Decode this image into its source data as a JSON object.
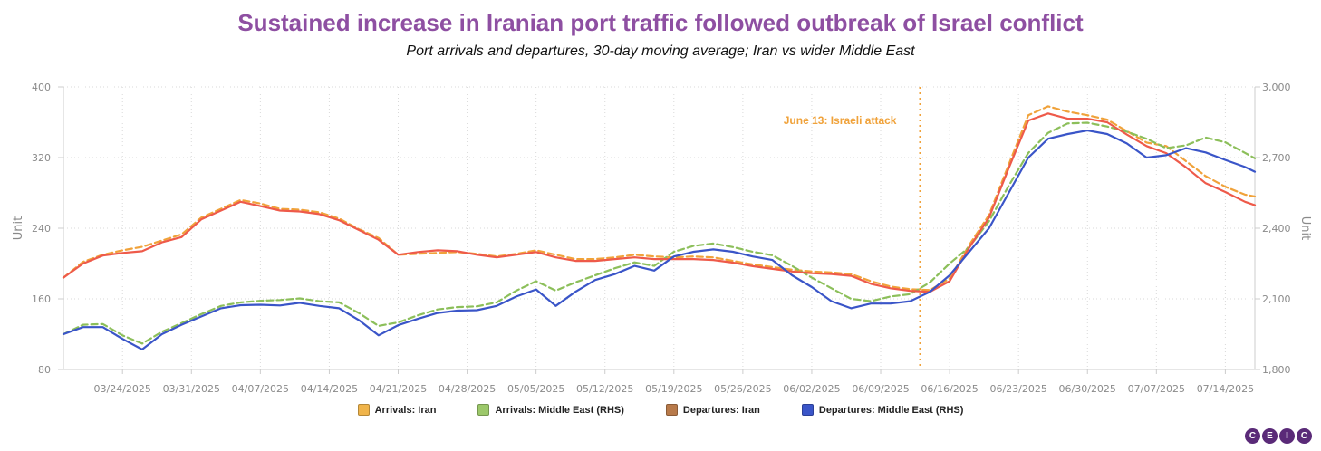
{
  "chart_data": {
    "type": "line",
    "title": "Sustained increase in Iranian port traffic followed outbreak of Israel conflict",
    "subtitle": "Port arrivals and departures, 30-day moving average; Iran vs wider Middle East",
    "y_left_label": "Unit",
    "y_right_label": "Unit",
    "y_left_range": [
      80,
      400
    ],
    "y_right_range": [
      1800,
      3000
    ],
    "y_left_ticks": [
      "80",
      "160",
      "240",
      "320",
      "400"
    ],
    "y_right_ticks": [
      "1,800",
      "2,100",
      "2,400",
      "2,700",
      "3,000"
    ],
    "x_ticks": [
      "03/24/2025",
      "03/31/2025",
      "04/07/2025",
      "04/14/2025",
      "04/21/2025",
      "04/28/2025",
      "05/05/2025",
      "05/12/2025",
      "05/19/2025",
      "05/26/2025",
      "06/02/2025",
      "06/09/2025",
      "06/16/2025",
      "06/23/2025",
      "06/30/2025",
      "07/07/2025",
      "07/14/2025"
    ],
    "x_start": "03/18/2025",
    "x_end": "07/17/2025",
    "grid": true,
    "legend_position": "bottom",
    "annotation": {
      "date": "06/13/2025",
      "label": "June 13: Israeli attack"
    },
    "series": [
      {
        "name": "Arrivals: Iran",
        "axis": "left",
        "color": "#f0a23a",
        "dashed": true,
        "points": [
          [
            "03/18/2025",
            184
          ],
          [
            "03/20/2025",
            202
          ],
          [
            "03/22/2025",
            210
          ],
          [
            "03/24/2025",
            215
          ],
          [
            "03/26/2025",
            219
          ],
          [
            "03/28/2025",
            226
          ],
          [
            "03/30/2025",
            233
          ],
          [
            "04/01/2025",
            252
          ],
          [
            "04/03/2025",
            262
          ],
          [
            "04/05/2025",
            272
          ],
          [
            "04/07/2025",
            268
          ],
          [
            "04/09/2025",
            262
          ],
          [
            "04/11/2025",
            261
          ],
          [
            "04/13/2025",
            258
          ],
          [
            "04/15/2025",
            251
          ],
          [
            "04/17/2025",
            239
          ],
          [
            "04/19/2025",
            229
          ],
          [
            "04/21/2025",
            210
          ],
          [
            "04/23/2025",
            211
          ],
          [
            "04/25/2025",
            212
          ],
          [
            "04/27/2025",
            213
          ],
          [
            "04/29/2025",
            211
          ],
          [
            "05/01/2025",
            208
          ],
          [
            "05/03/2025",
            211
          ],
          [
            "05/05/2025",
            215
          ],
          [
            "05/07/2025",
            210
          ],
          [
            "05/09/2025",
            205
          ],
          [
            "05/11/2025",
            205
          ],
          [
            "05/13/2025",
            207
          ],
          [
            "05/15/2025",
            210
          ],
          [
            "05/17/2025",
            208
          ],
          [
            "05/19/2025",
            207
          ],
          [
            "05/21/2025",
            208
          ],
          [
            "05/23/2025",
            207
          ],
          [
            "05/25/2025",
            203
          ],
          [
            "05/27/2025",
            199
          ],
          [
            "05/29/2025",
            196
          ],
          [
            "05/31/2025",
            193
          ],
          [
            "06/02/2025",
            191
          ],
          [
            "06/04/2025",
            190
          ],
          [
            "06/06/2025",
            188
          ],
          [
            "06/08/2025",
            180
          ],
          [
            "06/10/2025",
            174
          ],
          [
            "06/12/2025",
            171
          ],
          [
            "06/14/2025",
            170
          ],
          [
            "06/16/2025",
            183
          ],
          [
            "06/18/2025",
            221
          ],
          [
            "06/20/2025",
            255
          ],
          [
            "06/22/2025",
            312
          ],
          [
            "06/24/2025",
            368
          ],
          [
            "06/26/2025",
            378
          ],
          [
            "06/28/2025",
            372
          ],
          [
            "06/30/2025",
            368
          ],
          [
            "07/02/2025",
            363
          ],
          [
            "07/04/2025",
            350
          ],
          [
            "07/06/2025",
            337
          ],
          [
            "07/08/2025",
            333
          ],
          [
            "07/10/2025",
            316
          ],
          [
            "07/12/2025",
            299
          ],
          [
            "07/14/2025",
            287
          ],
          [
            "07/16/2025",
            278
          ],
          [
            "07/17/2025",
            276
          ]
        ]
      },
      {
        "name": "Arrivals: Middle East (RHS)",
        "axis": "right",
        "color": "#8cbf5a",
        "dashed": true,
        "points": [
          [
            "03/18/2025",
            1950
          ],
          [
            "03/20/2025",
            1990
          ],
          [
            "03/22/2025",
            1993
          ],
          [
            "03/24/2025",
            1945
          ],
          [
            "03/26/2025",
            1910
          ],
          [
            "03/28/2025",
            1960
          ],
          [
            "03/30/2025",
            1997
          ],
          [
            "04/01/2025",
            2035
          ],
          [
            "04/03/2025",
            2070
          ],
          [
            "04/05/2025",
            2085
          ],
          [
            "04/07/2025",
            2092
          ],
          [
            "04/09/2025",
            2095
          ],
          [
            "04/11/2025",
            2102
          ],
          [
            "04/13/2025",
            2090
          ],
          [
            "04/15/2025",
            2085
          ],
          [
            "04/17/2025",
            2040
          ],
          [
            "04/19/2025",
            1985
          ],
          [
            "04/21/2025",
            2000
          ],
          [
            "04/23/2025",
            2030
          ],
          [
            "04/25/2025",
            2055
          ],
          [
            "04/27/2025",
            2065
          ],
          [
            "04/29/2025",
            2068
          ],
          [
            "05/01/2025",
            2085
          ],
          [
            "05/03/2025",
            2135
          ],
          [
            "05/05/2025",
            2175
          ],
          [
            "05/07/2025",
            2135
          ],
          [
            "05/09/2025",
            2170
          ],
          [
            "05/11/2025",
            2200
          ],
          [
            "05/13/2025",
            2230
          ],
          [
            "05/15/2025",
            2255
          ],
          [
            "05/17/2025",
            2240
          ],
          [
            "05/19/2025",
            2300
          ],
          [
            "05/21/2025",
            2325
          ],
          [
            "05/23/2025",
            2335
          ],
          [
            "05/25/2025",
            2320
          ],
          [
            "05/27/2025",
            2300
          ],
          [
            "05/29/2025",
            2285
          ],
          [
            "05/31/2025",
            2240
          ],
          [
            "06/02/2025",
            2190
          ],
          [
            "06/04/2025",
            2145
          ],
          [
            "06/06/2025",
            2100
          ],
          [
            "06/08/2025",
            2090
          ],
          [
            "06/10/2025",
            2110
          ],
          [
            "06/12/2025",
            2120
          ],
          [
            "06/14/2025",
            2170
          ],
          [
            "06/16/2025",
            2250
          ],
          [
            "06/18/2025",
            2320
          ],
          [
            "06/20/2025",
            2430
          ],
          [
            "06/22/2025",
            2580
          ],
          [
            "06/24/2025",
            2720
          ],
          [
            "06/26/2025",
            2805
          ],
          [
            "06/28/2025",
            2845
          ],
          [
            "06/30/2025",
            2848
          ],
          [
            "07/02/2025",
            2832
          ],
          [
            "07/04/2025",
            2810
          ],
          [
            "07/06/2025",
            2780
          ],
          [
            "07/08/2025",
            2740
          ],
          [
            "07/10/2025",
            2752
          ],
          [
            "07/12/2025",
            2785
          ],
          [
            "07/14/2025",
            2765
          ],
          [
            "07/16/2025",
            2720
          ],
          [
            "07/17/2025",
            2697
          ]
        ]
      },
      {
        "name": "Departures: Iran",
        "axis": "left",
        "color": "#ee5a4a",
        "dashed": false,
        "points": [
          [
            "03/18/2025",
            184
          ],
          [
            "03/20/2025",
            200
          ],
          [
            "03/22/2025",
            209
          ],
          [
            "03/24/2025",
            212
          ],
          [
            "03/26/2025",
            214
          ],
          [
            "03/28/2025",
            224
          ],
          [
            "03/30/2025",
            230
          ],
          [
            "04/01/2025",
            250
          ],
          [
            "04/03/2025",
            260
          ],
          [
            "04/05/2025",
            270
          ],
          [
            "04/07/2025",
            265
          ],
          [
            "04/09/2025",
            260
          ],
          [
            "04/11/2025",
            259
          ],
          [
            "04/13/2025",
            256
          ],
          [
            "04/15/2025",
            249
          ],
          [
            "04/17/2025",
            238
          ],
          [
            "04/19/2025",
            227
          ],
          [
            "04/21/2025",
            210
          ],
          [
            "04/23/2025",
            213
          ],
          [
            "04/25/2025",
            215
          ],
          [
            "04/27/2025",
            214
          ],
          [
            "04/29/2025",
            210
          ],
          [
            "05/01/2025",
            207
          ],
          [
            "05/03/2025",
            210
          ],
          [
            "05/05/2025",
            213
          ],
          [
            "05/07/2025",
            207
          ],
          [
            "05/09/2025",
            203
          ],
          [
            "05/11/2025",
            203
          ],
          [
            "05/13/2025",
            205
          ],
          [
            "05/15/2025",
            207
          ],
          [
            "05/17/2025",
            205
          ],
          [
            "05/19/2025",
            205
          ],
          [
            "05/21/2025",
            205
          ],
          [
            "05/23/2025",
            204
          ],
          [
            "05/25/2025",
            201
          ],
          [
            "05/27/2025",
            197
          ],
          [
            "05/29/2025",
            194
          ],
          [
            "05/31/2025",
            191
          ],
          [
            "06/02/2025",
            189
          ],
          [
            "06/04/2025",
            188
          ],
          [
            "06/06/2025",
            186
          ],
          [
            "06/08/2025",
            177
          ],
          [
            "06/10/2025",
            172
          ],
          [
            "06/12/2025",
            169
          ],
          [
            "06/14/2025",
            168
          ],
          [
            "06/16/2025",
            180
          ],
          [
            "06/18/2025",
            218
          ],
          [
            "06/20/2025",
            252
          ],
          [
            "06/22/2025",
            308
          ],
          [
            "06/24/2025",
            362
          ],
          [
            "06/26/2025",
            370
          ],
          [
            "06/28/2025",
            364
          ],
          [
            "06/30/2025",
            364
          ],
          [
            "07/02/2025",
            360
          ],
          [
            "07/04/2025",
            346
          ],
          [
            "07/06/2025",
            333
          ],
          [
            "07/08/2025",
            325
          ],
          [
            "07/10/2025",
            309
          ],
          [
            "07/12/2025",
            291
          ],
          [
            "07/14/2025",
            281
          ],
          [
            "07/16/2025",
            270
          ],
          [
            "07/17/2025",
            266
          ]
        ]
      },
      {
        "name": "Departures: Middle East (RHS)",
        "axis": "right",
        "color": "#3a55c8",
        "dashed": false,
        "points": [
          [
            "03/18/2025",
            1950
          ],
          [
            "03/20/2025",
            1980
          ],
          [
            "03/22/2025",
            1980
          ],
          [
            "03/24/2025",
            1930
          ],
          [
            "03/26/2025",
            1885
          ],
          [
            "03/28/2025",
            1950
          ],
          [
            "03/30/2025",
            1990
          ],
          [
            "04/01/2025",
            2025
          ],
          [
            "04/03/2025",
            2060
          ],
          [
            "04/05/2025",
            2073
          ],
          [
            "04/07/2025",
            2075
          ],
          [
            "04/09/2025",
            2072
          ],
          [
            "04/11/2025",
            2083
          ],
          [
            "04/13/2025",
            2070
          ],
          [
            "04/15/2025",
            2060
          ],
          [
            "04/17/2025",
            2010
          ],
          [
            "04/19/2025",
            1945
          ],
          [
            "04/21/2025",
            1988
          ],
          [
            "04/23/2025",
            2015
          ],
          [
            "04/25/2025",
            2040
          ],
          [
            "04/27/2025",
            2050
          ],
          [
            "04/29/2025",
            2052
          ],
          [
            "05/01/2025",
            2070
          ],
          [
            "05/03/2025",
            2110
          ],
          [
            "05/05/2025",
            2140
          ],
          [
            "05/07/2025",
            2070
          ],
          [
            "05/09/2025",
            2130
          ],
          [
            "05/11/2025",
            2180
          ],
          [
            "05/13/2025",
            2205
          ],
          [
            "05/15/2025",
            2240
          ],
          [
            "05/17/2025",
            2220
          ],
          [
            "05/19/2025",
            2280
          ],
          [
            "05/21/2025",
            2300
          ],
          [
            "05/23/2025",
            2310
          ],
          [
            "05/25/2025",
            2300
          ],
          [
            "05/27/2025",
            2280
          ],
          [
            "05/29/2025",
            2265
          ],
          [
            "05/31/2025",
            2200
          ],
          [
            "06/02/2025",
            2150
          ],
          [
            "06/04/2025",
            2090
          ],
          [
            "06/06/2025",
            2060
          ],
          [
            "06/08/2025",
            2080
          ],
          [
            "06/10/2025",
            2080
          ],
          [
            "06/12/2025",
            2090
          ],
          [
            "06/14/2025",
            2130
          ],
          [
            "06/16/2025",
            2200
          ],
          [
            "06/18/2025",
            2300
          ],
          [
            "06/20/2025",
            2400
          ],
          [
            "06/22/2025",
            2550
          ],
          [
            "06/24/2025",
            2700
          ],
          [
            "06/26/2025",
            2780
          ],
          [
            "06/28/2025",
            2800
          ],
          [
            "06/30/2025",
            2815
          ],
          [
            "07/02/2025",
            2800
          ],
          [
            "07/04/2025",
            2760
          ],
          [
            "07/06/2025",
            2700
          ],
          [
            "07/08/2025",
            2710
          ],
          [
            "07/10/2025",
            2740
          ],
          [
            "07/12/2025",
            2722
          ],
          [
            "07/14/2025",
            2690
          ],
          [
            "07/16/2025",
            2660
          ],
          [
            "07/17/2025",
            2640
          ]
        ]
      }
    ]
  },
  "legend_items": [
    {
      "label": "Arrivals: Iran",
      "color": "#f0b44a"
    },
    {
      "label": "Arrivals: Middle East (RHS)",
      "color": "#9cc86a"
    },
    {
      "label": "Departures: Iran",
      "color": "#b87a4a"
    },
    {
      "label": "Departures: Middle East (RHS)",
      "color": "#3a55c8"
    }
  ],
  "logo_letters": [
    "C",
    "E",
    "I",
    "C"
  ]
}
